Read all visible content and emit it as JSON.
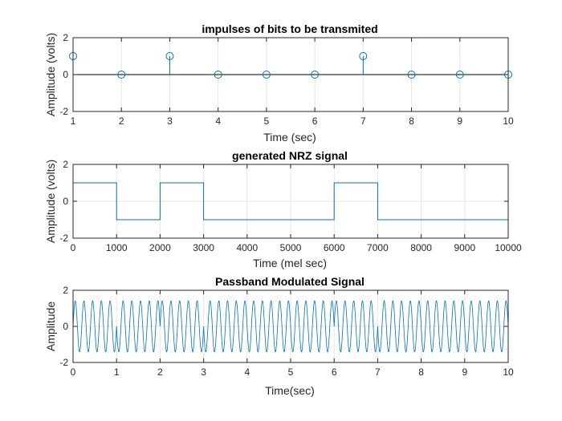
{
  "colors": {
    "series": "#0072BD",
    "axis": "#262626",
    "grid": "#e6e6e6",
    "background": "#ffffff"
  },
  "chart_data": [
    {
      "type": "stem",
      "title": "impulses of bits to be transmited",
      "xlabel": "Time (sec)",
      "ylabel": "Amplitude (volts)",
      "xlim": [
        1,
        10
      ],
      "ylim": [
        -2,
        2
      ],
      "xticks": [
        1,
        2,
        3,
        4,
        5,
        6,
        7,
        8,
        9,
        10
      ],
      "yticks": [
        -2,
        0,
        2
      ],
      "grid": true,
      "baseline": 0,
      "series": [
        {
          "x": [
            1,
            2,
            3,
            4,
            5,
            6,
            7,
            8,
            9,
            10
          ],
          "y": [
            1,
            0,
            1,
            0,
            0,
            0,
            1,
            0,
            0,
            0
          ]
        }
      ]
    },
    {
      "type": "line",
      "title": "generated NRZ signal",
      "xlabel": "Time (mel sec)",
      "ylabel": "Amplitude (volts)",
      "xlim": [
        0,
        10000
      ],
      "ylim": [
        -2,
        2
      ],
      "xticks": [
        0,
        1000,
        2000,
        3000,
        4000,
        5000,
        6000,
        7000,
        8000,
        9000,
        10000
      ],
      "yticks": [
        -2,
        0,
        2
      ],
      "grid": true,
      "step": true,
      "series": [
        {
          "x": [
            0,
            1000,
            1000,
            2000,
            2000,
            3000,
            3000,
            6000,
            6000,
            7000,
            7000,
            10000
          ],
          "y": [
            1,
            1,
            -1,
            -1,
            1,
            1,
            -1,
            -1,
            1,
            1,
            -1,
            -1
          ]
        }
      ]
    },
    {
      "type": "line",
      "title": "Passband Modulated Signal",
      "xlabel": "Time(sec)",
      "ylabel": "Amplitude",
      "xlim": [
        0,
        10
      ],
      "ylim": [
        -2,
        2
      ],
      "xticks": [
        0,
        1,
        2,
        3,
        4,
        5,
        6,
        7,
        8,
        9,
        10
      ],
      "yticks": [
        -2,
        0,
        2
      ],
      "grid": true,
      "signal": {
        "kind": "sinusoid",
        "amplitude": 1.414,
        "frequency_hz": 5,
        "phase_jumps_at": [
          1,
          2,
          3,
          6,
          7
        ]
      }
    }
  ]
}
